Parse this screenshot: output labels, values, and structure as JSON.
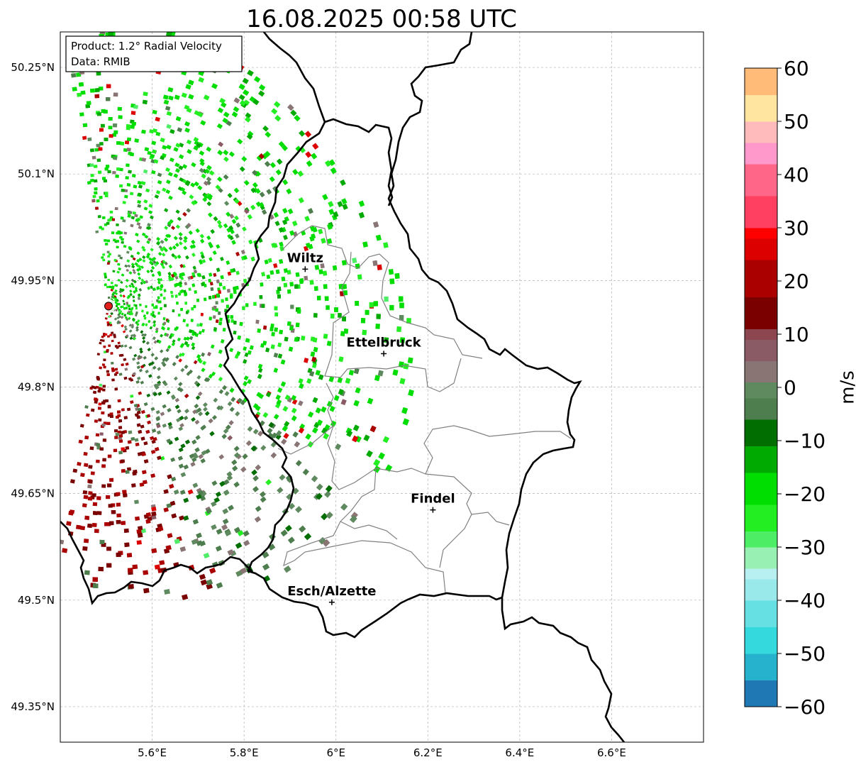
{
  "title": "16.08.2025 00:58 UTC",
  "info_box": {
    "product": "Product: 1.2° Radial Velocity",
    "data_source": "Data: RMIB"
  },
  "map": {
    "lon_range": [
      5.4,
      6.8
    ],
    "lat_range": [
      49.3,
      50.3
    ],
    "lat_ticks": [
      {
        "value": 50.25,
        "label": "50.25°N"
      },
      {
        "value": 50.1,
        "label": "50.1°N"
      },
      {
        "value": 49.95,
        "label": "49.95°N"
      },
      {
        "value": 49.8,
        "label": "49.8°N"
      },
      {
        "value": 49.65,
        "label": "49.65°N"
      },
      {
        "value": 49.5,
        "label": "49.5°N"
      },
      {
        "value": 49.35,
        "label": "49.35°N"
      }
    ],
    "lon_ticks": [
      {
        "value": 5.6,
        "label": "5.6°E"
      },
      {
        "value": 5.8,
        "label": "5.8°E"
      },
      {
        "value": 6.0,
        "label": "6°E"
      },
      {
        "value": 6.2,
        "label": "6.2°E"
      },
      {
        "value": 6.4,
        "label": "6.4°E"
      },
      {
        "value": 6.6,
        "label": "6.6°E"
      }
    ],
    "radar_site": {
      "lon": 5.505,
      "lat": 49.914
    },
    "cities": [
      {
        "name": "Wiltz",
        "lon": 5.933,
        "lat": 49.966
      },
      {
        "name": "Ettelbruck",
        "lon": 6.104,
        "lat": 49.847
      },
      {
        "name": "Findel",
        "lon": 6.211,
        "lat": 49.627
      },
      {
        "name": "Esch/Alzette",
        "lon": 5.991,
        "lat": 49.497
      }
    ],
    "border_color": "#000000",
    "canton_color": "#808080"
  },
  "colorbar": {
    "label": "m/s",
    "min": -60,
    "max": 60,
    "ticks": [
      {
        "value": 60,
        "label": "60"
      },
      {
        "value": 50,
        "label": "50"
      },
      {
        "value": 40,
        "label": "40"
      },
      {
        "value": 30,
        "label": "30"
      },
      {
        "value": 20,
        "label": "20"
      },
      {
        "value": 10,
        "label": "10"
      },
      {
        "value": 0,
        "label": "0"
      },
      {
        "value": -10,
        "label": "−10"
      },
      {
        "value": -20,
        "label": "−20"
      },
      {
        "value": -30,
        "label": "−30"
      },
      {
        "value": -40,
        "label": "−40"
      },
      {
        "value": -50,
        "label": "−50"
      },
      {
        "value": -60,
        "label": "−60"
      }
    ],
    "stops": [
      {
        "value": -60,
        "color": "#1f78b4"
      },
      {
        "value": -55,
        "color": "#26b2cc"
      },
      {
        "value": -50,
        "color": "#33d9dd"
      },
      {
        "value": -45,
        "color": "#66e0e3"
      },
      {
        "value": -40,
        "color": "#99e8ea"
      },
      {
        "value": -36,
        "color": "#b8eff0"
      },
      {
        "value": -34,
        "color": "#99f0b3"
      },
      {
        "value": -30,
        "color": "#4dee66"
      },
      {
        "value": -27,
        "color": "#22ee22"
      },
      {
        "value": -22,
        "color": "#00dd00"
      },
      {
        "value": -16,
        "color": "#00aa00"
      },
      {
        "value": -11,
        "color": "#006e00"
      },
      {
        "value": -6,
        "color": "#4e7e4e"
      },
      {
        "value": -2,
        "color": "#5f8a5f"
      },
      {
        "value": 1,
        "color": "#8a7575"
      },
      {
        "value": 5,
        "color": "#8a5a65"
      },
      {
        "value": 9,
        "color": "#8b4650"
      },
      {
        "value": 11,
        "color": "#7a0000"
      },
      {
        "value": 17,
        "color": "#aa0000"
      },
      {
        "value": 24,
        "color": "#dd0000"
      },
      {
        "value": 28,
        "color": "#ff0000"
      },
      {
        "value": 30,
        "color": "#ff4060"
      },
      {
        "value": 36,
        "color": "#ff6688"
      },
      {
        "value": 42,
        "color": "#ff99cc"
      },
      {
        "value": 46,
        "color": "#ffbbbb"
      },
      {
        "value": 50,
        "color": "#ffe5a0"
      },
      {
        "value": 55,
        "color": "#ffbb77"
      },
      {
        "value": 60,
        "color": "#ff9955"
      }
    ]
  }
}
